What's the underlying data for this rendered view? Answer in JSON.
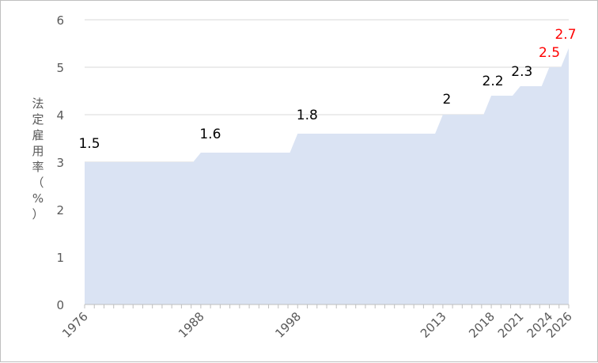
{
  "chart_data": {
    "type": "area",
    "ylabel_chars": [
      "法",
      "定",
      "雇",
      "用",
      "率",
      "（",
      "%",
      "）"
    ],
    "ylim": [
      0,
      6
    ],
    "yticks": [
      0,
      1,
      2,
      3,
      4,
      5,
      6
    ],
    "xlim": [
      1976,
      2026
    ],
    "x_tick_labels": [
      "1976",
      "1988",
      "1998",
      "2013",
      "2018",
      "2021",
      "2024",
      "2026"
    ],
    "grid": true,
    "fill_color": "#dae3f3",
    "series": [
      {
        "steps": [
          {
            "x_from": 1976,
            "x_to": 1987,
            "value": 1.5
          },
          {
            "x_from": 1988,
            "x_to": 1997,
            "value": 1.6
          },
          {
            "x_from": 1998,
            "x_to": 2012,
            "value": 1.8
          },
          {
            "x_from": 2013,
            "x_to": 2017,
            "value": 2.0
          },
          {
            "x_from": 2018,
            "x_to": 2019,
            "value": 2.2
          },
          {
            "x_from": 2021,
            "x_to": 2022,
            "value": 2.3
          },
          {
            "x_from": 2024,
            "x_to": 2025,
            "value": 2.5
          },
          {
            "x_from": 2026,
            "x_to": 2026,
            "value": 2.7
          }
        ]
      }
    ],
    "data_labels": [
      {
        "text": "1.5",
        "x": 1976,
        "value": 1.5,
        "color": "#000000"
      },
      {
        "text": "1.6",
        "x": 1988,
        "value": 1.6,
        "color": "#000000"
      },
      {
        "text": "1.8",
        "x": 1998,
        "value": 1.8,
        "color": "#000000"
      },
      {
        "text": "2",
        "x": 2013,
        "value": 2.0,
        "color": "#000000"
      },
      {
        "text": "2.2",
        "x": 2018,
        "value": 2.2,
        "color": "#000000"
      },
      {
        "text": "2.3",
        "x": 2021,
        "value": 2.3,
        "color": "#000000"
      },
      {
        "text": "2.5",
        "x": 2024,
        "value": 2.5,
        "color": "#ff0000"
      },
      {
        "text": "2.7",
        "x": 2026,
        "value": 2.7,
        "color": "#ff0000"
      }
    ]
  }
}
